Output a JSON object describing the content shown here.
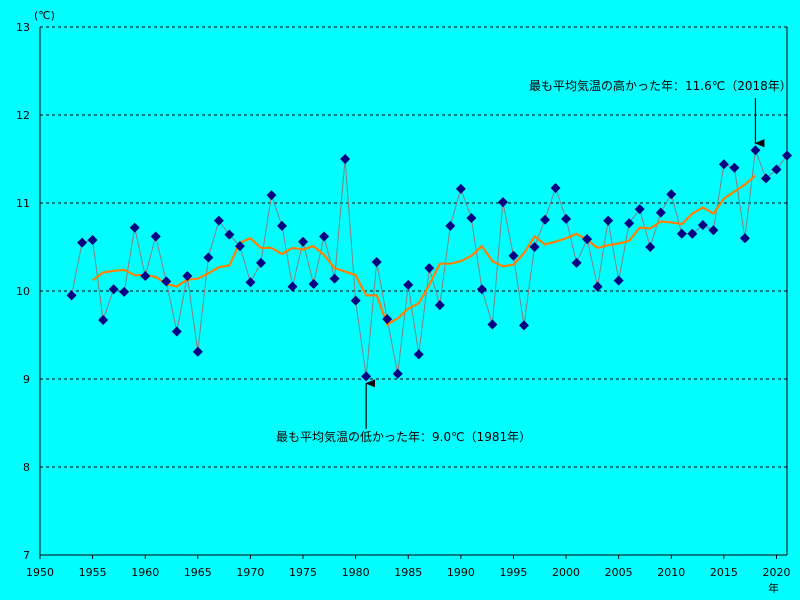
{
  "chart_data": {
    "type": "line",
    "unit_label": "(℃)",
    "x_unit": "年",
    "xlim": [
      1950,
      2021
    ],
    "ylim": [
      7,
      13
    ],
    "x_ticks": [
      1950,
      1955,
      1960,
      1965,
      1970,
      1975,
      1980,
      1985,
      1990,
      1995,
      2000,
      2005,
      2010,
      2015,
      2020
    ],
    "y_ticks": [
      7,
      8,
      9,
      10,
      11,
      12,
      13
    ],
    "grid": "horizontal-dashed",
    "series": [
      {
        "style": "markers-with-thin-line",
        "color": "#000080",
        "line_color": "#808080",
        "x": [
          1953,
          1954,
          1955,
          1956,
          1957,
          1958,
          1959,
          1960,
          1961,
          1962,
          1963,
          1964,
          1965,
          1966,
          1967,
          1968,
          1969,
          1970,
          1971,
          1972,
          1973,
          1974,
          1975,
          1976,
          1977,
          1978,
          1979,
          1980,
          1981,
          1982,
          1983,
          1984,
          1985,
          1986,
          1987,
          1988,
          1989,
          1990,
          1991,
          1992,
          1993,
          1994,
          1995,
          1996,
          1997,
          1998,
          1999,
          2000,
          2001,
          2002,
          2003,
          2004,
          2005,
          2006,
          2007,
          2008,
          2009,
          2010,
          2011,
          2012,
          2013,
          2014,
          2015,
          2016,
          2017,
          2018,
          2019,
          2020,
          2021
        ],
        "values": [
          9.95,
          10.55,
          10.58,
          9.67,
          10.02,
          9.99,
          10.72,
          10.17,
          10.62,
          10.11,
          9.54,
          10.17,
          9.31,
          10.38,
          10.8,
          10.64,
          10.51,
          10.1,
          10.32,
          11.09,
          10.74,
          10.05,
          10.56,
          10.08,
          10.62,
          10.14,
          11.5,
          9.89,
          9.03,
          10.33,
          9.68,
          9.06,
          10.07,
          9.28,
          10.26,
          9.84,
          10.74,
          11.16,
          10.83,
          10.02,
          9.62,
          11.01,
          10.4,
          9.61,
          10.5,
          10.81,
          11.17,
          10.82,
          10.32,
          10.59,
          10.05,
          10.8,
          10.12,
          10.77,
          10.93,
          10.5,
          10.89,
          11.1,
          10.65,
          10.65,
          10.75,
          10.69,
          11.44,
          11.4,
          10.6,
          11.6,
          11.28,
          11.38,
          11.54
        ]
      },
      {
        "style": "smooth-line",
        "color": "#ff8000",
        "x": [
          1955,
          1956,
          1957,
          1958,
          1959,
          1960,
          1961,
          1962,
          1963,
          1964,
          1965,
          1966,
          1967,
          1968,
          1969,
          1970,
          1971,
          1972,
          1973,
          1974,
          1975,
          1976,
          1977,
          1978,
          1979,
          1980,
          1981,
          1982,
          1983,
          1984,
          1985,
          1986,
          1987,
          1988,
          1989,
          1990,
          1991,
          1992,
          1993,
          1994,
          1995,
          1996,
          1997,
          1998,
          1999,
          2000,
          2001,
          2002,
          2003,
          2004,
          2005,
          2006,
          2007,
          2008,
          2009,
          2010,
          2011,
          2012,
          2013,
          2014,
          2015,
          2016,
          2017,
          2018
        ],
        "values": [
          10.12,
          10.21,
          10.23,
          10.24,
          10.18,
          10.18,
          10.16,
          10.08,
          10.05,
          10.13,
          10.14,
          10.2,
          10.27,
          10.29,
          10.55,
          10.6,
          10.49,
          10.49,
          10.42,
          10.49,
          10.47,
          10.51,
          10.41,
          10.26,
          10.22,
          10.18,
          9.95,
          9.95,
          9.62,
          9.69,
          9.8,
          9.86,
          10.07,
          10.31,
          10.31,
          10.34,
          10.4,
          10.51,
          10.34,
          10.28,
          10.3,
          10.43,
          10.62,
          10.53,
          10.56,
          10.6,
          10.65,
          10.58,
          10.49,
          10.52,
          10.54,
          10.57,
          10.72,
          10.71,
          10.79,
          10.78,
          10.76,
          10.88,
          10.95,
          10.88,
          11.05,
          11.13,
          11.21,
          11.31
        ]
      }
    ],
    "annotations": [
      {
        "id": "max",
        "text": "最も平均気温の高かった年：11.6℃（2018年）",
        "target_year": 2018,
        "target_value": 11.6
      },
      {
        "id": "min",
        "text": "最も平均気温の低かった年：9.0℃（1981年）",
        "target_year": 1981,
        "target_value": 9.03
      }
    ]
  }
}
